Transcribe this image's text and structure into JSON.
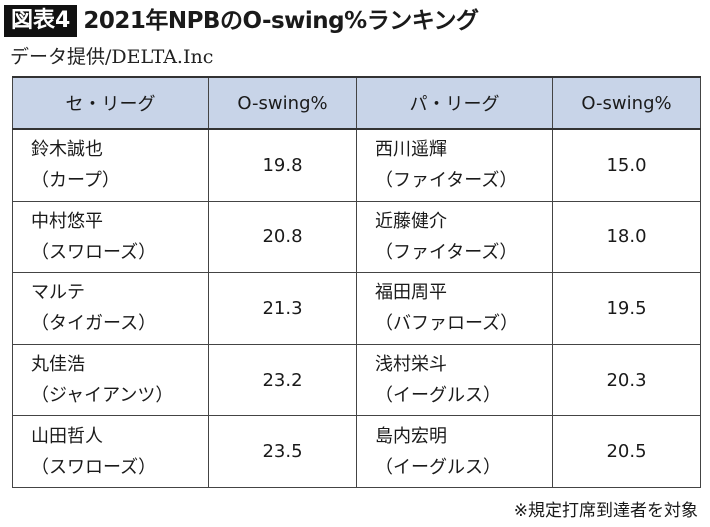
{
  "header": {
    "badge": "図表4",
    "title": "2021年NPBのO-swing%ランキング",
    "source": "データ提供/DELTA.Inc"
  },
  "chart_data": {
    "type": "table",
    "columns": [
      "セ・リーグ",
      "O-swing%",
      "パ・リーグ",
      "O-swing%"
    ],
    "central": [
      {
        "name": "鈴木誠也",
        "team": "（カープ）",
        "value": "19.8"
      },
      {
        "name": "中村悠平",
        "team": "（スワローズ）",
        "value": "20.8"
      },
      {
        "name": "マルテ",
        "team": "（タイガース）",
        "value": "21.3"
      },
      {
        "name": "丸佳浩",
        "team": "（ジャイアンツ）",
        "value": "23.2"
      },
      {
        "name": "山田哲人",
        "team": "（スワローズ）",
        "value": "23.5"
      }
    ],
    "pacific": [
      {
        "name": "西川遥輝",
        "team": "（ファイターズ）",
        "value": "15.0"
      },
      {
        "name": "近藤健介",
        "team": "（ファイターズ）",
        "value": "18.0"
      },
      {
        "name": "福田周平",
        "team": "（バファローズ）",
        "value": "19.5"
      },
      {
        "name": "浅村栄斗",
        "team": "（イーグルス）",
        "value": "20.3"
      },
      {
        "name": "島内宏明",
        "team": "（イーグルス）",
        "value": "20.5"
      }
    ]
  },
  "footer": {
    "note": "※規定打席到達者を対象"
  }
}
